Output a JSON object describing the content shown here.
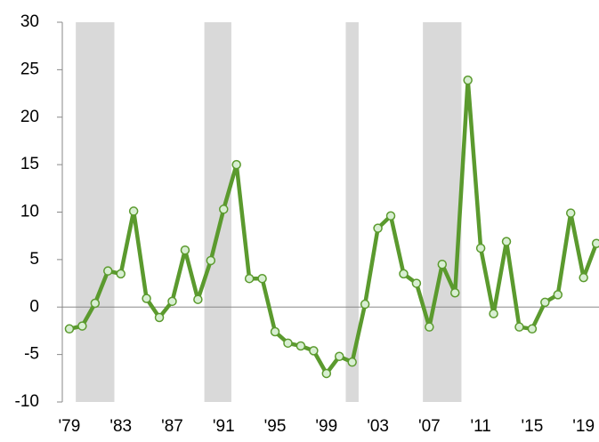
{
  "chart_data": {
    "type": "line",
    "x": [
      1979,
      1980,
      1981,
      1982,
      1983,
      1984,
      1985,
      1986,
      1987,
      1988,
      1989,
      1990,
      1991,
      1992,
      1993,
      1994,
      1995,
      1996,
      1997,
      1998,
      1999,
      2000,
      2001,
      2002,
      2003,
      2004,
      2005,
      2006,
      2007,
      2008,
      2009,
      2010,
      2011,
      2012,
      2013,
      2014,
      2015,
      2016,
      2017,
      2018,
      2019,
      2020
    ],
    "series": [
      {
        "color": "#5b9a2e",
        "marker_fill": "#d8efd2",
        "values": [
          -2.3,
          -2.0,
          0.4,
          3.8,
          3.5,
          10.1,
          0.9,
          -1.1,
          0.6,
          6.0,
          0.8,
          4.9,
          10.3,
          15.0,
          3.0,
          3.0,
          -2.6,
          -3.8,
          -4.1,
          -4.6,
          -7.0,
          -5.2,
          -5.8,
          0.3,
          8.3,
          9.6,
          3.5,
          2.5,
          -2.1,
          4.5,
          1.5,
          23.9,
          6.2,
          -0.7,
          6.9,
          -2.1,
          -2.3,
          0.5,
          1.3,
          9.9,
          3.1,
          6.7
        ]
      }
    ],
    "shaded_periods": [
      [
        1979.5,
        1982.5
      ],
      [
        1989.5,
        1991.6
      ],
      [
        2000.5,
        2001.5
      ],
      [
        2006.5,
        2009.5
      ]
    ],
    "shade_color": "#d9d9d9",
    "xlim": [
      1978.45,
      2020.2
    ],
    "xticks": [
      {
        "value": 1979,
        "label": "'79"
      },
      {
        "value": 1983,
        "label": "'83"
      },
      {
        "value": 1987,
        "label": "'87"
      },
      {
        "value": 1991,
        "label": "'91"
      },
      {
        "value": 1995,
        "label": "'95"
      },
      {
        "value": 1999,
        "label": "'99"
      },
      {
        "value": 2003,
        "label": "'03"
      },
      {
        "value": 2007,
        "label": "'07"
      },
      {
        "value": 2011,
        "label": "'11"
      },
      {
        "value": 2015,
        "label": "'15"
      },
      {
        "value": 2019,
        "label": "'19"
      }
    ],
    "ylim": [
      -10,
      30
    ],
    "yticks": [
      -10,
      -5,
      0,
      5,
      10,
      15,
      20,
      25,
      30
    ]
  }
}
